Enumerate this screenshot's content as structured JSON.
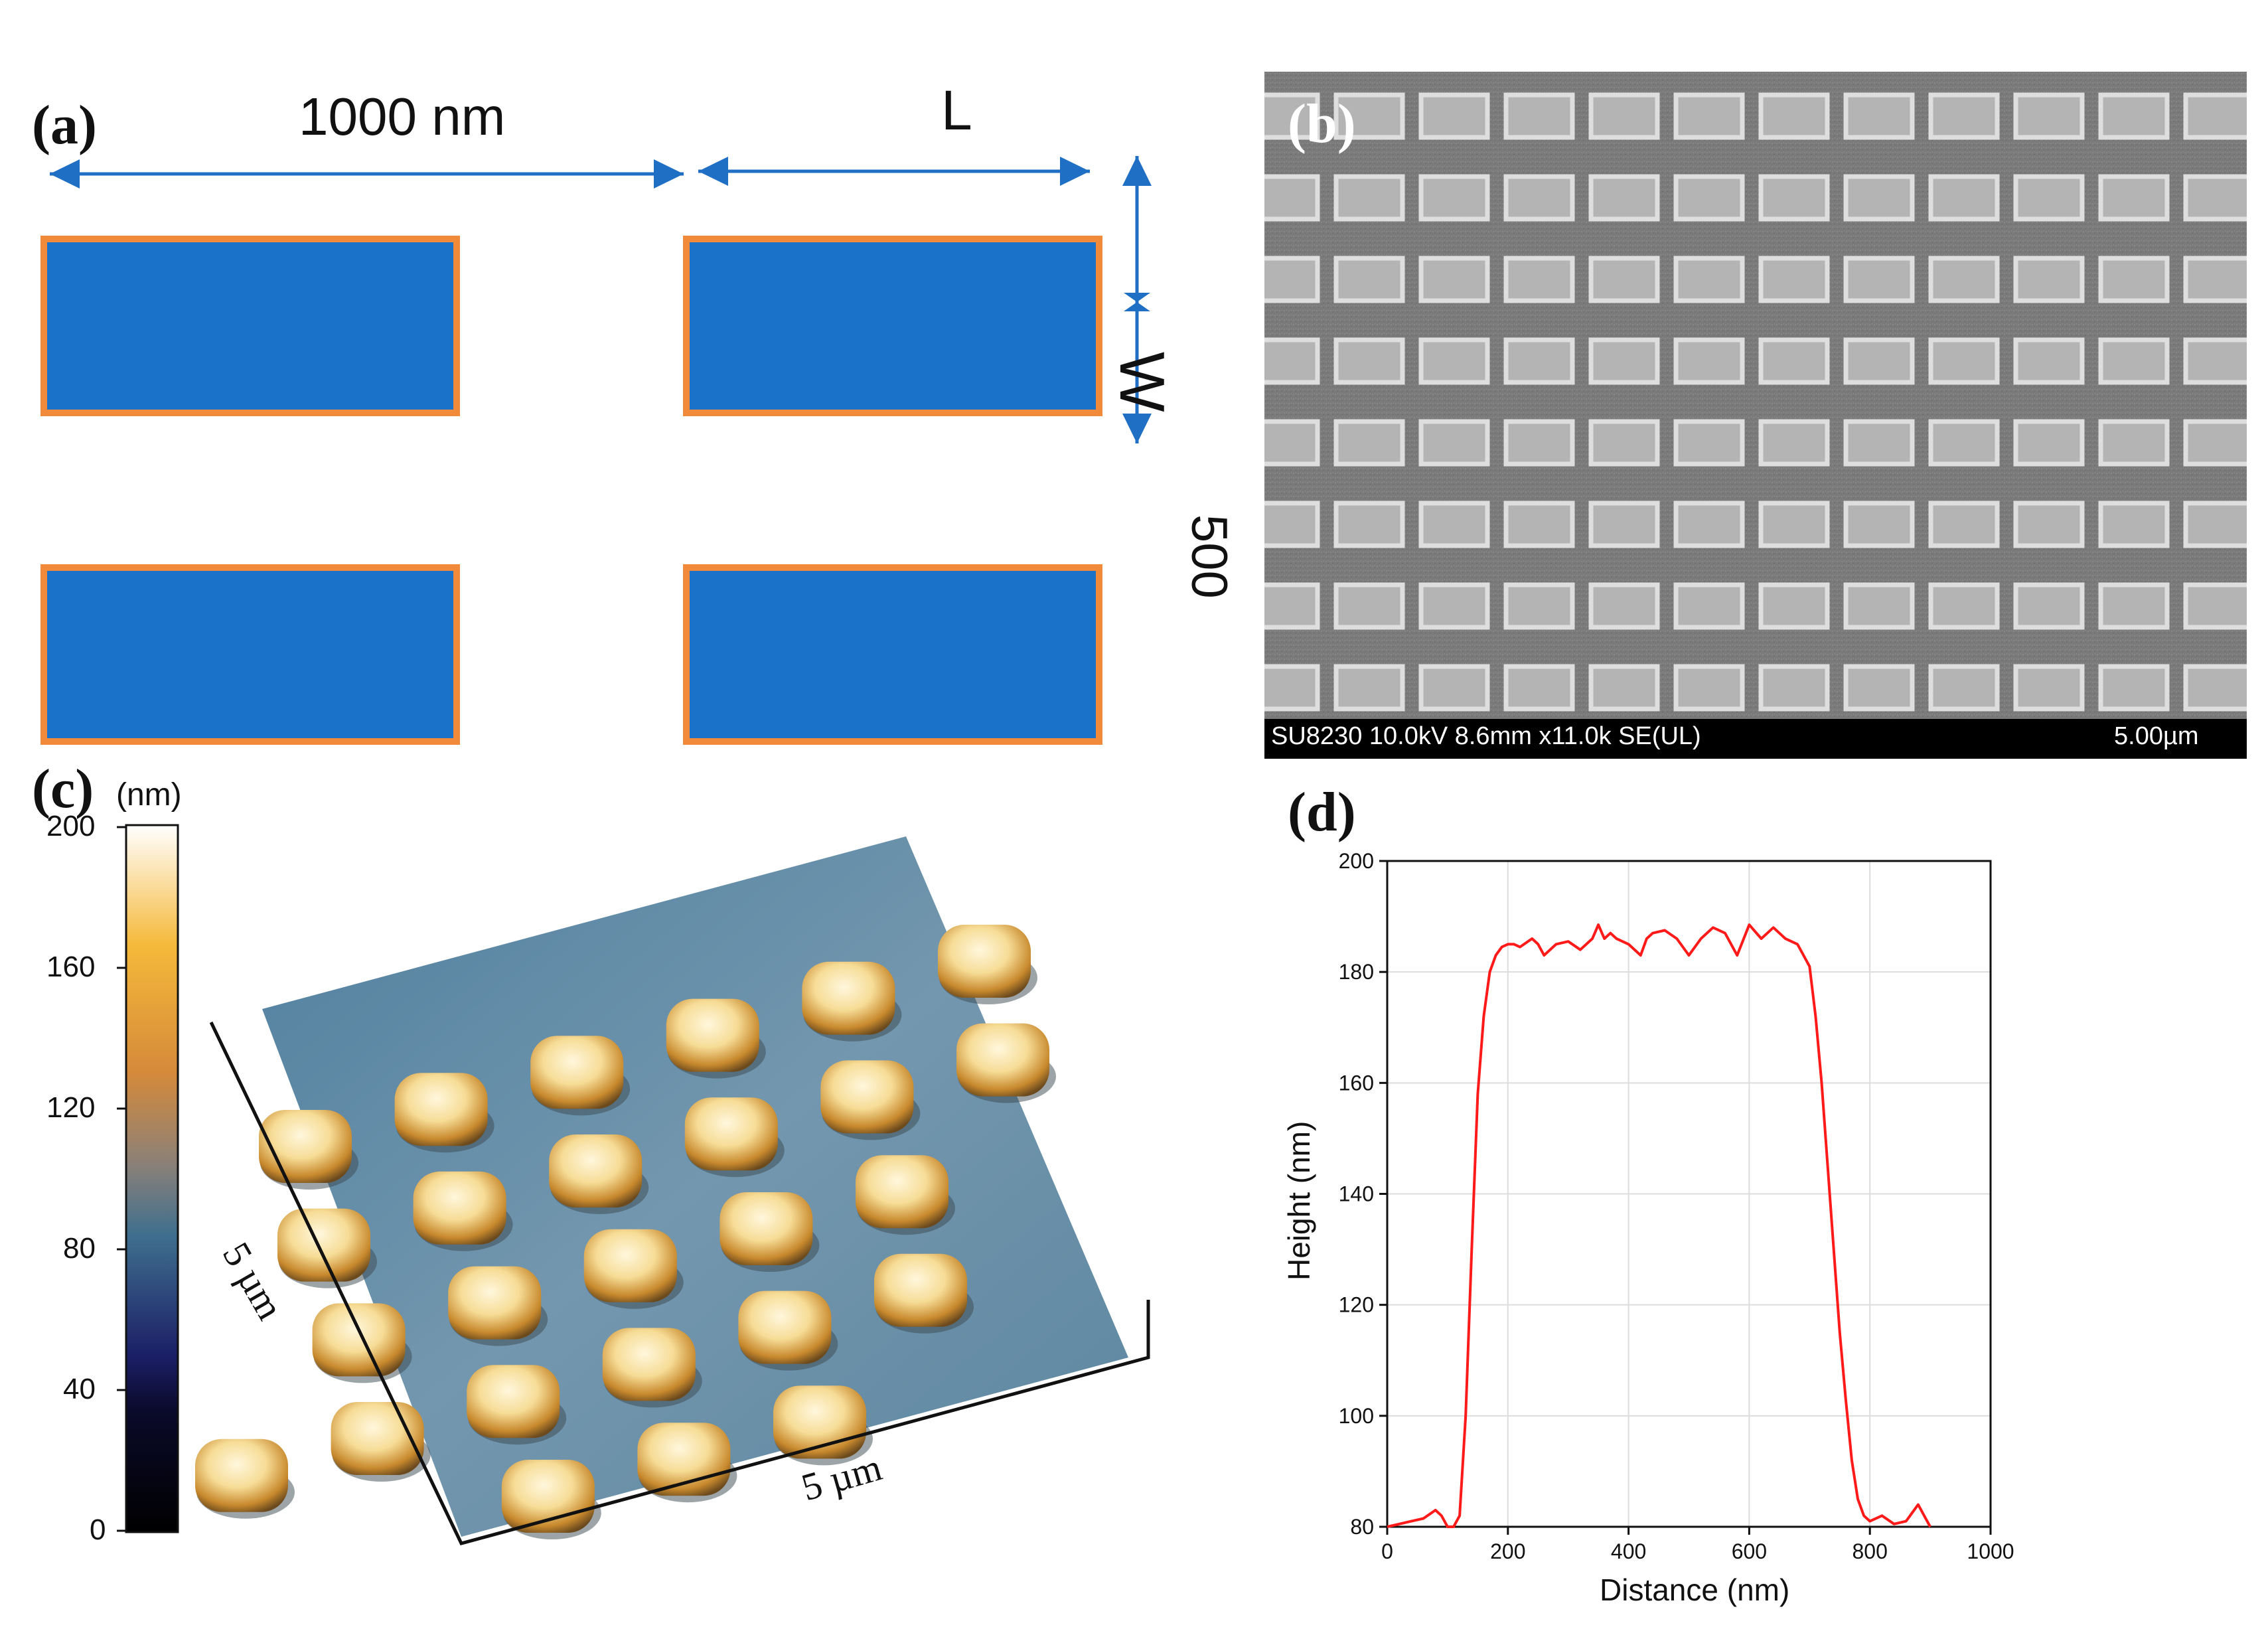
{
  "panel_a": {
    "label": "(a)",
    "period_label": "1000 nm",
    "length_label": "L",
    "width_label": "W",
    "gap_label": "500",
    "colors": {
      "fill": "#1a72c9",
      "border": "#f28a3c",
      "arrow": "#1f6fc4"
    }
  },
  "panel_b": {
    "label": "(b)",
    "sem_info": "SU8230 10.0kV 8.6mm x11.0k SE(UL)",
    "scale_bar": "5.00µm",
    "grid": {
      "rows": 8,
      "cols": 12
    },
    "colors": {
      "background": "#7a7a7a",
      "pad": "#b4b4b4",
      "pad_edge": "#dedede",
      "info_bar": "#000000"
    }
  },
  "panel_c": {
    "label": "(c)",
    "colorbar_unit": "(nm)",
    "colorbar_ticks": [
      "200",
      "160",
      "120",
      "80",
      "40",
      "0"
    ],
    "axis_label_left": "5 µm",
    "axis_label_bottom": "5 µm",
    "colors": {
      "surface": "#6f93ad",
      "pillar_top": "#fbefc7",
      "pillar_side": "#c88a2e"
    }
  },
  "panel_d": {
    "label": "(d)",
    "chart_data": {
      "type": "line",
      "xlabel": "Distance (nm)",
      "ylabel": "Height (nm)",
      "xlim": [
        0,
        1000
      ],
      "ylim": [
        80,
        200
      ],
      "xticks": [
        "0",
        "200",
        "400",
        "600",
        "800",
        "1000"
      ],
      "yticks": [
        "80",
        "100",
        "120",
        "140",
        "160",
        "180",
        "200"
      ],
      "grid": true,
      "series": [
        {
          "color": "#ff1a1a",
          "x": [
            0,
            20,
            40,
            60,
            80,
            90,
            100,
            110,
            120,
            130,
            140,
            150,
            160,
            170,
            180,
            190,
            200,
            210,
            220,
            240,
            250,
            260,
            280,
            300,
            320,
            340,
            350,
            360,
            370,
            380,
            400,
            420,
            430,
            440,
            460,
            480,
            500,
            520,
            540,
            560,
            580,
            600,
            620,
            640,
            660,
            680,
            690,
            700,
            710,
            720,
            730,
            740,
            750,
            760,
            770,
            780,
            790,
            800,
            820,
            840,
            860,
            880,
            890,
            900
          ],
          "y": [
            80,
            80.5,
            81,
            81.5,
            83,
            82,
            80,
            80,
            82,
            100,
            130,
            158,
            172,
            180,
            183,
            184.5,
            185,
            185,
            184.5,
            186,
            185,
            183,
            185,
            185.5,
            184,
            186,
            188.5,
            186,
            187,
            186,
            185,
            183,
            186,
            187,
            187.5,
            186,
            183,
            186,
            188,
            187,
            183,
            188.5,
            186,
            188,
            186,
            185,
            183,
            181,
            172,
            160,
            145,
            130,
            115,
            103,
            92,
            85,
            82,
            81,
            82,
            80.5,
            81,
            84,
            82,
            80
          ]
        }
      ]
    }
  }
}
